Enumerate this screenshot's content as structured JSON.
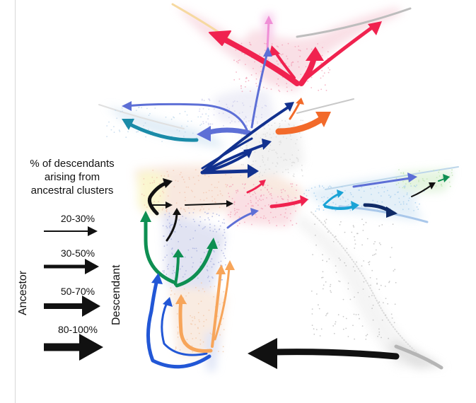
{
  "legend": {
    "title_line1": "% of descendants",
    "title_line2": "arising from",
    "title_line3": "ancestral clusters",
    "entries": [
      {
        "label": "20-30%",
        "range": [
          20,
          30
        ]
      },
      {
        "label": "30-50%",
        "range": [
          30,
          50
        ]
      },
      {
        "label": "50-70%",
        "range": [
          50,
          70
        ]
      },
      {
        "label": "80-100%",
        "range": [
          80,
          100
        ]
      }
    ],
    "ancestor_label": "Ancestor",
    "descendant_label": "Descendant"
  },
  "colors": {
    "red": "#f0224f",
    "pink": "#ef8fd6",
    "orange": "#f26a2a",
    "light_orange": "#f7a55a",
    "periwinkle": "#5d6fd6",
    "teal": "#1a8ba8",
    "navy": "#12318f",
    "green": "#0e8f52",
    "blue": "#2257d6",
    "black": "#111111",
    "cyan": "#1aa3d6",
    "dark_navy": "#0f2a66",
    "gray": "#9a9a9a",
    "lavender": "#8d8fe0"
  }
}
